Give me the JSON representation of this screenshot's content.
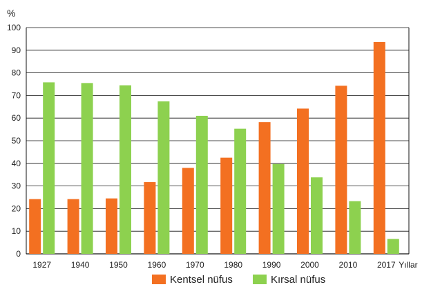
{
  "chart_data": {
    "type": "bar",
    "y_unit": "%",
    "x_unit": "Yıllar",
    "categories": [
      "1927",
      "1940",
      "1950",
      "1960",
      "1970",
      "1980",
      "1990",
      "2000",
      "2010",
      "2017"
    ],
    "series": [
      {
        "name": "Kentsel nüfus",
        "color": "#f37021",
        "values": [
          24.2,
          24.2,
          24.5,
          31.7,
          38.0,
          42.5,
          58.2,
          64.2,
          74.3,
          93.6
        ]
      },
      {
        "name": "Kırsal nüfus",
        "color": "#8dd14f",
        "values": [
          75.8,
          75.5,
          74.5,
          67.4,
          61.0,
          55.3,
          39.7,
          33.8,
          23.3,
          6.6
        ]
      }
    ],
    "ylim": [
      0,
      100
    ],
    "yticks": [
      0,
      10,
      20,
      30,
      40,
      50,
      60,
      70,
      80,
      90,
      100
    ],
    "grid": true,
    "legend_position": "bottom"
  }
}
